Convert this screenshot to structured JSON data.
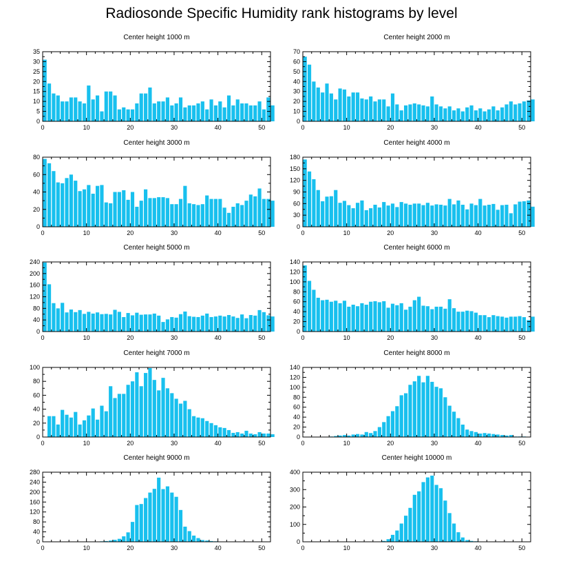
{
  "title": "Radiosonde Specific Humidity rank histograms by level",
  "colors": {
    "bar": "#18c0ee",
    "bar_stroke": "#ffffff",
    "axis": "#000000"
  },
  "chart_data": [
    {
      "type": "bar",
      "title": "Center height 1000 m",
      "xlim": [
        0,
        52
      ],
      "ylim": [
        0,
        35
      ],
      "xticks": [
        0,
        10,
        20,
        30,
        40,
        50
      ],
      "yticks": [
        0,
        5,
        10,
        15,
        20,
        25,
        30,
        35
      ],
      "values": [
        31,
        19,
        14,
        13,
        10,
        10,
        12,
        12,
        10,
        9,
        18,
        11,
        13,
        5,
        15,
        15,
        13,
        6,
        7,
        6,
        6,
        9,
        14,
        14,
        17,
        9,
        10,
        10,
        12,
        8,
        9,
        12,
        7,
        8,
        8,
        9,
        10,
        6,
        11,
        8,
        10,
        7,
        13,
        8,
        11,
        9,
        9,
        8,
        8,
        10,
        6,
        12,
        8
      ]
    },
    {
      "type": "bar",
      "title": "Center height 2000 m",
      "xlim": [
        0,
        52
      ],
      "ylim": [
        0,
        70
      ],
      "xticks": [
        0,
        10,
        20,
        30,
        40,
        50
      ],
      "yticks": [
        0,
        10,
        20,
        30,
        40,
        50,
        60,
        70
      ],
      "values": [
        65,
        57,
        40,
        34,
        29,
        38,
        28,
        22,
        33,
        32,
        25,
        29,
        29,
        23,
        22,
        25,
        20,
        22,
        22,
        15,
        28,
        17,
        11,
        16,
        17,
        18,
        17,
        16,
        15,
        25,
        17,
        15,
        13,
        15,
        11,
        13,
        10,
        14,
        16,
        11,
        13,
        10,
        12,
        15,
        11,
        14,
        17,
        20,
        17,
        18,
        20,
        21,
        22
      ]
    },
    {
      "type": "bar",
      "title": "Center height 3000 m",
      "xlim": [
        0,
        52
      ],
      "ylim": [
        0,
        80
      ],
      "xticks": [
        0,
        10,
        20,
        30,
        40,
        50
      ],
      "yticks": [
        0,
        20,
        40,
        60,
        80
      ],
      "values": [
        78,
        73,
        64,
        51,
        50,
        56,
        60,
        53,
        41,
        43,
        48,
        38,
        47,
        48,
        28,
        27,
        40,
        40,
        42,
        31,
        40,
        23,
        30,
        43,
        33,
        33,
        34,
        34,
        33,
        26,
        26,
        32,
        47,
        27,
        26,
        25,
        26,
        36,
        32,
        32,
        32,
        22,
        16,
        23,
        27,
        25,
        30,
        37,
        35,
        44,
        32,
        32,
        30
      ]
    },
    {
      "type": "bar",
      "title": "Center height 4000 m",
      "xlim": [
        0,
        52
      ],
      "ylim": [
        0,
        180
      ],
      "xticks": [
        0,
        10,
        20,
        30,
        40,
        50
      ],
      "yticks": [
        0,
        30,
        60,
        90,
        120,
        150,
        180
      ],
      "values": [
        174,
        143,
        123,
        95,
        66,
        78,
        79,
        95,
        62,
        67,
        56,
        48,
        62,
        68,
        43,
        48,
        57,
        50,
        64,
        55,
        60,
        51,
        64,
        60,
        57,
        60,
        60,
        56,
        62,
        55,
        58,
        57,
        55,
        72,
        58,
        68,
        57,
        45,
        60,
        56,
        72,
        55,
        57,
        59,
        44,
        56,
        57,
        35,
        58,
        65,
        66,
        68,
        52
      ]
    },
    {
      "type": "bar",
      "title": "Center height 5000 m",
      "xlim": [
        0,
        52
      ],
      "ylim": [
        0,
        240
      ],
      "xticks": [
        0,
        10,
        20,
        30,
        40,
        50
      ],
      "yticks": [
        0,
        40,
        80,
        120,
        160,
        200,
        240
      ],
      "values": [
        238,
        163,
        98,
        80,
        99,
        66,
        76,
        67,
        74,
        61,
        68,
        62,
        66,
        60,
        61,
        59,
        75,
        68,
        50,
        64,
        56,
        65,
        58,
        59,
        59,
        62,
        55,
        33,
        42,
        50,
        48,
        60,
        69,
        53,
        51,
        50,
        55,
        62,
        50,
        52,
        55,
        52,
        57,
        52,
        47,
        59,
        46,
        57,
        55,
        74,
        67,
        56,
        52
      ]
    },
    {
      "type": "bar",
      "title": "Center height 6000 m",
      "xlim": [
        0,
        52
      ],
      "ylim": [
        0,
        140
      ],
      "xticks": [
        0,
        10,
        20,
        30,
        40,
        50
      ],
      "yticks": [
        0,
        20,
        40,
        60,
        80,
        100,
        120,
        140
      ],
      "values": [
        133,
        102,
        84,
        68,
        63,
        64,
        60,
        62,
        57,
        62,
        50,
        54,
        51,
        57,
        54,
        60,
        61,
        59,
        61,
        48,
        56,
        53,
        57,
        44,
        50,
        63,
        70,
        52,
        51,
        45,
        50,
        50,
        46,
        65,
        47,
        40,
        40,
        42,
        41,
        38,
        33,
        33,
        29,
        33,
        31,
        30,
        28,
        30,
        30,
        31,
        29,
        23,
        30
      ]
    },
    {
      "type": "bar",
      "title": "Center height 7000 m",
      "xlim": [
        0,
        52
      ],
      "ylim": [
        0,
        100
      ],
      "xticks": [
        0,
        10,
        20,
        30,
        40,
        50
      ],
      "yticks": [
        0,
        20,
        40,
        60,
        80,
        100
      ],
      "values": [
        0,
        30,
        30,
        18,
        39,
        32,
        28,
        36,
        18,
        24,
        31,
        41,
        25,
        45,
        37,
        73,
        56,
        62,
        62,
        75,
        80,
        93,
        73,
        92,
        99,
        82,
        67,
        85,
        70,
        63,
        55,
        48,
        52,
        40,
        30,
        28,
        27,
        23,
        20,
        17,
        14,
        13,
        10,
        6,
        7,
        5,
        9,
        5,
        4,
        7,
        5,
        5,
        4
      ]
    },
    {
      "type": "bar",
      "title": "Center height 8000 m",
      "xlim": [
        0,
        52
      ],
      "ylim": [
        0,
        140
      ],
      "xticks": [
        0,
        10,
        20,
        30,
        40,
        50
      ],
      "yticks": [
        0,
        20,
        40,
        60,
        80,
        100,
        120,
        140
      ],
      "values": [
        0,
        0,
        0,
        0,
        0,
        0,
        1,
        2,
        3,
        4,
        3,
        5,
        6,
        5,
        10,
        8,
        12,
        20,
        30,
        42,
        52,
        62,
        84,
        88,
        105,
        112,
        123,
        110,
        123,
        111,
        101,
        98,
        80,
        63,
        51,
        38,
        25,
        15,
        12,
        10,
        7,
        8,
        7,
        6,
        5,
        4,
        3,
        4,
        1,
        1,
        1,
        0,
        0
      ]
    },
    {
      "type": "bar",
      "title": "Center height 9000 m",
      "xlim": [
        0,
        52
      ],
      "ylim": [
        0,
        280
      ],
      "xticks": [
        0,
        10,
        20,
        30,
        40,
        50
      ],
      "yticks": [
        0,
        40,
        80,
        120,
        160,
        200,
        240,
        280
      ],
      "values": [
        0,
        0,
        0,
        0,
        0,
        0,
        0,
        0,
        0,
        0,
        0,
        0,
        1,
        2,
        3,
        5,
        8,
        12,
        22,
        38,
        80,
        148,
        152,
        176,
        198,
        213,
        258,
        212,
        223,
        198,
        181,
        128,
        61,
        43,
        25,
        15,
        7,
        5,
        3,
        2,
        1,
        1,
        0,
        0,
        0,
        0,
        0,
        0,
        0,
        0,
        0,
        0,
        0
      ]
    },
    {
      "type": "bar",
      "title": "Center height 10000 m",
      "xlim": [
        0,
        52
      ],
      "ylim": [
        0,
        400
      ],
      "xticks": [
        0,
        10,
        20,
        30,
        40,
        50
      ],
      "yticks": [
        0,
        100,
        200,
        300,
        400
      ],
      "values": [
        0,
        0,
        0,
        0,
        0,
        0,
        0,
        0,
        0,
        0,
        0,
        0,
        0,
        0,
        0,
        0,
        0,
        2,
        5,
        15,
        40,
        65,
        105,
        150,
        195,
        270,
        290,
        343,
        370,
        380,
        327,
        308,
        237,
        165,
        105,
        55,
        25,
        10,
        5,
        3,
        2,
        1,
        0,
        0,
        1,
        0,
        0,
        1,
        0,
        0,
        0,
        0,
        0
      ]
    }
  ]
}
